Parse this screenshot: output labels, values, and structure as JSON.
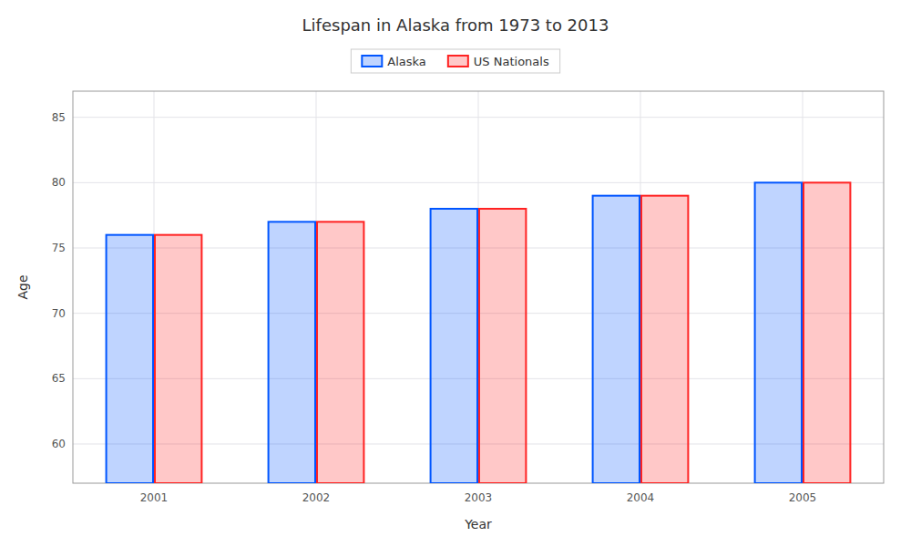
{
  "chart_data": {
    "type": "bar",
    "title": "Lifespan in Alaska from 1973 to 2013",
    "x_label": "Year",
    "y_label": "Age",
    "categories": [
      "2001",
      "2002",
      "2003",
      "2004",
      "2005"
    ],
    "series": [
      {
        "name": "Alaska",
        "color": "#0055ff",
        "values": [
          76,
          77,
          78,
          79,
          80
        ]
      },
      {
        "name": "US Nationals",
        "color": "#ff2222",
        "values": [
          76,
          77,
          78,
          79,
          80
        ]
      }
    ],
    "ylim": [
      57,
      87
    ],
    "yticks": [
      60,
      65,
      70,
      75,
      80,
      85
    ],
    "grid": true,
    "legend": "top"
  }
}
